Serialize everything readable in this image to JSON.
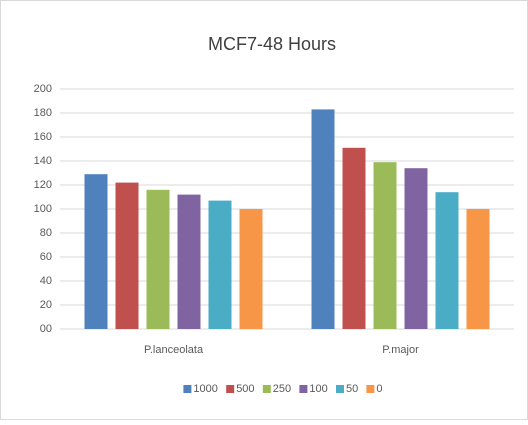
{
  "chart_data": {
    "type": "bar",
    "title": "MCF7-48 Hours",
    "categories": [
      "P.lanceolata",
      "P.major"
    ],
    "series": [
      {
        "name": "1000",
        "color": "#4f81bd",
        "values": [
          129,
          183
        ]
      },
      {
        "name": "500",
        "color": "#c0504d",
        "values": [
          122,
          151
        ]
      },
      {
        "name": "250",
        "color": "#9bbb59",
        "values": [
          116,
          139
        ]
      },
      {
        "name": "100",
        "color": "#8064a2",
        "values": [
          112,
          134
        ]
      },
      {
        "name": "50",
        "color": "#4bacc6",
        "values": [
          107,
          114
        ]
      },
      {
        "name": "0",
        "color": "#f79646",
        "values": [
          100,
          100
        ]
      }
    ],
    "ylim": [
      0,
      200
    ],
    "yticks": [
      {
        "value": 0,
        "label": "00"
      },
      20,
      40,
      60,
      80,
      100,
      120,
      140,
      160,
      180,
      200
    ],
    "grid": true,
    "legend": "bottom"
  }
}
